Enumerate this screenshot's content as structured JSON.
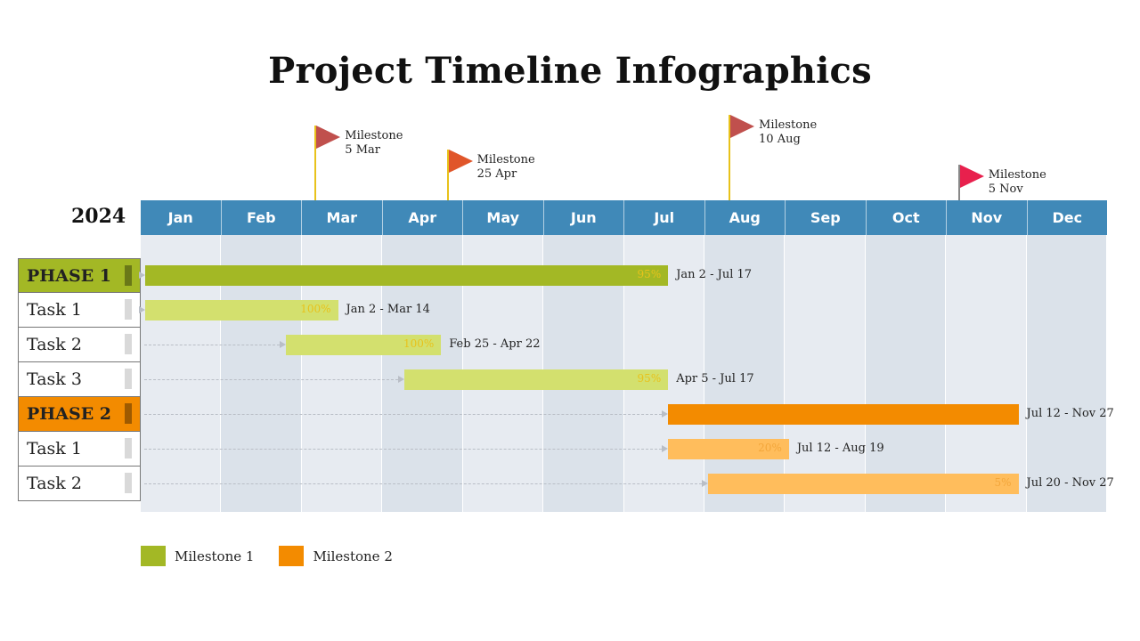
{
  "title": "Project Timeline Infographics",
  "year": "2024",
  "months": [
    "Jan",
    "Feb",
    "Mar",
    "Apr",
    "May",
    "Jun",
    "Jul",
    "Aug",
    "Sep",
    "Oct",
    "Nov",
    "Dec"
  ],
  "colors": {
    "header": "#4089b8",
    "phase1": "#a3b825",
    "phase1_task": "#d3e06e",
    "phase2": "#f38b00",
    "phase2_task": "#ffbd5c",
    "pct1": "#e8c21b",
    "pct2": "#f3a63a"
  },
  "milestones": [
    {
      "label": "Milestone",
      "date": "5 Mar",
      "month_pos": 2.16,
      "color": "#c0504d"
    },
    {
      "label": "Milestone",
      "date": "25 Apr",
      "month_pos": 3.8,
      "color": "#e0562a"
    },
    {
      "label": "Milestone",
      "date": "10 Aug",
      "month_pos": 7.3,
      "color": "#c0504d"
    },
    {
      "label": "Milestone",
      "date": "5 Nov",
      "month_pos": 10.15,
      "color": "#e8204d"
    }
  ],
  "rows": [
    {
      "label": "PHASE 1",
      "type": "phase",
      "group": 1,
      "start": 0.05,
      "end": 6.55,
      "pct": "95%",
      "range": "Jan 2 - Jul 17"
    },
    {
      "label": "Task 1",
      "type": "task",
      "group": 1,
      "start": 0.05,
      "end": 2.45,
      "pct": "100%",
      "range": "Jan 2 - Mar 14"
    },
    {
      "label": "Task 2",
      "type": "task",
      "group": 1,
      "start": 1.8,
      "end": 3.73,
      "pct": "100%",
      "range": "Feb 25 - Apr 22"
    },
    {
      "label": "Task 3",
      "type": "task",
      "group": 1,
      "start": 3.27,
      "end": 6.55,
      "pct": "95%",
      "range": "Apr 5 - Jul 17"
    },
    {
      "label": "PHASE 2",
      "type": "phase",
      "group": 2,
      "start": 6.55,
      "end": 10.9,
      "pct": "",
      "range": "Jul 12 - Nov 27"
    },
    {
      "label": "Task 1",
      "type": "task",
      "group": 2,
      "start": 6.55,
      "end": 8.05,
      "pct": "20%",
      "range": "Jul 12 - Aug 19"
    },
    {
      "label": "Task 2",
      "type": "task",
      "group": 2,
      "start": 7.05,
      "end": 10.9,
      "pct": "5%",
      "range": "Jul 20 - Nov 27"
    }
  ],
  "legend": [
    {
      "label": "Milestone 1",
      "color": "#a3b825"
    },
    {
      "label": "Milestone 2",
      "color": "#f38b00"
    }
  ]
}
